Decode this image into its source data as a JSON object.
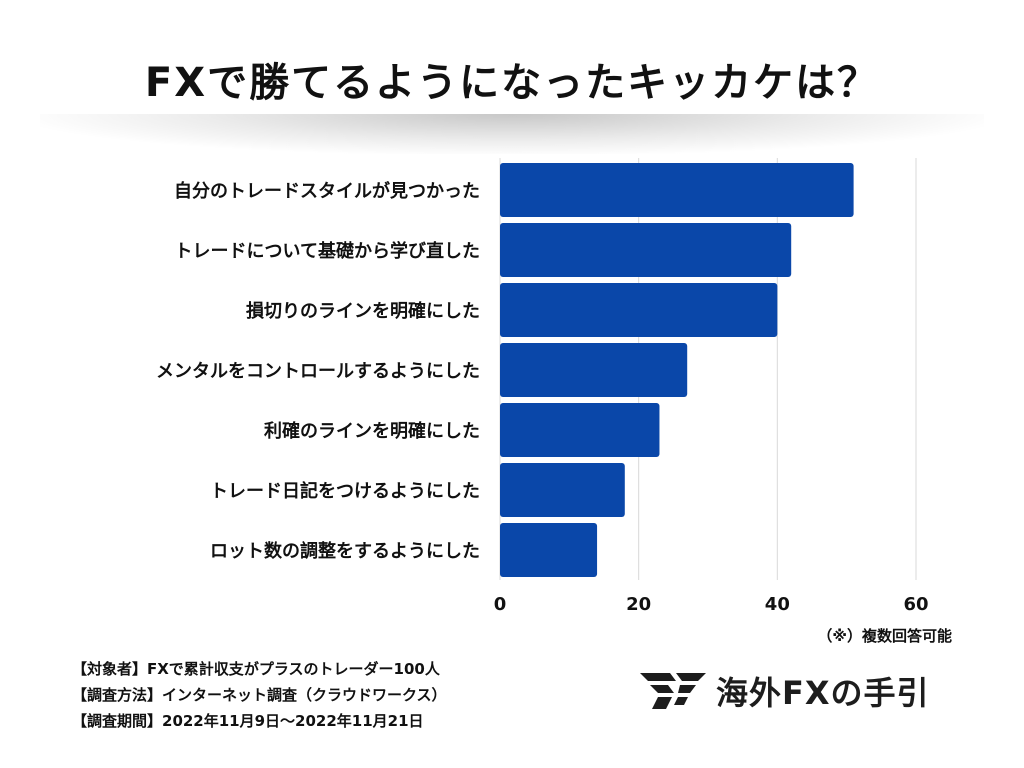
{
  "title": "FXで勝てるようになったキッカケは？",
  "note": "（※）複数回答可能",
  "footer": {
    "target": "【対象者】FXで累計収支がプラスのトレーダー100人",
    "method": "【調査方法】インターネット調査（クラウドワークス）",
    "period": "【調査期間】2022年11月9日～2022年11月21日"
  },
  "logo": {
    "text": "海外FXの手引",
    "mark_icon": "fx-wing-logo-icon"
  },
  "colors": {
    "bar": "#0a47a9",
    "grid": "#d9d9d9",
    "text": "#111111"
  },
  "chart_data": {
    "type": "bar",
    "orientation": "horizontal",
    "categories": [
      "自分のトレードスタイルが見つかった",
      "トレードについて基礎から学び直した",
      "損切りのラインを明確にした",
      "メンタルをコントロールするようにした",
      "利確のラインを明確にした",
      "トレード日記をつけるようにした",
      "ロット数の調整をするようにした"
    ],
    "values": [
      51,
      42,
      40,
      27,
      23,
      18,
      14
    ],
    "xlim": [
      0,
      60
    ],
    "xticks": [
      "0",
      "20",
      "40",
      "60"
    ],
    "grid": true,
    "title": "FXで勝てるようになったキッカケは？",
    "xlabel": "",
    "ylabel": ""
  }
}
